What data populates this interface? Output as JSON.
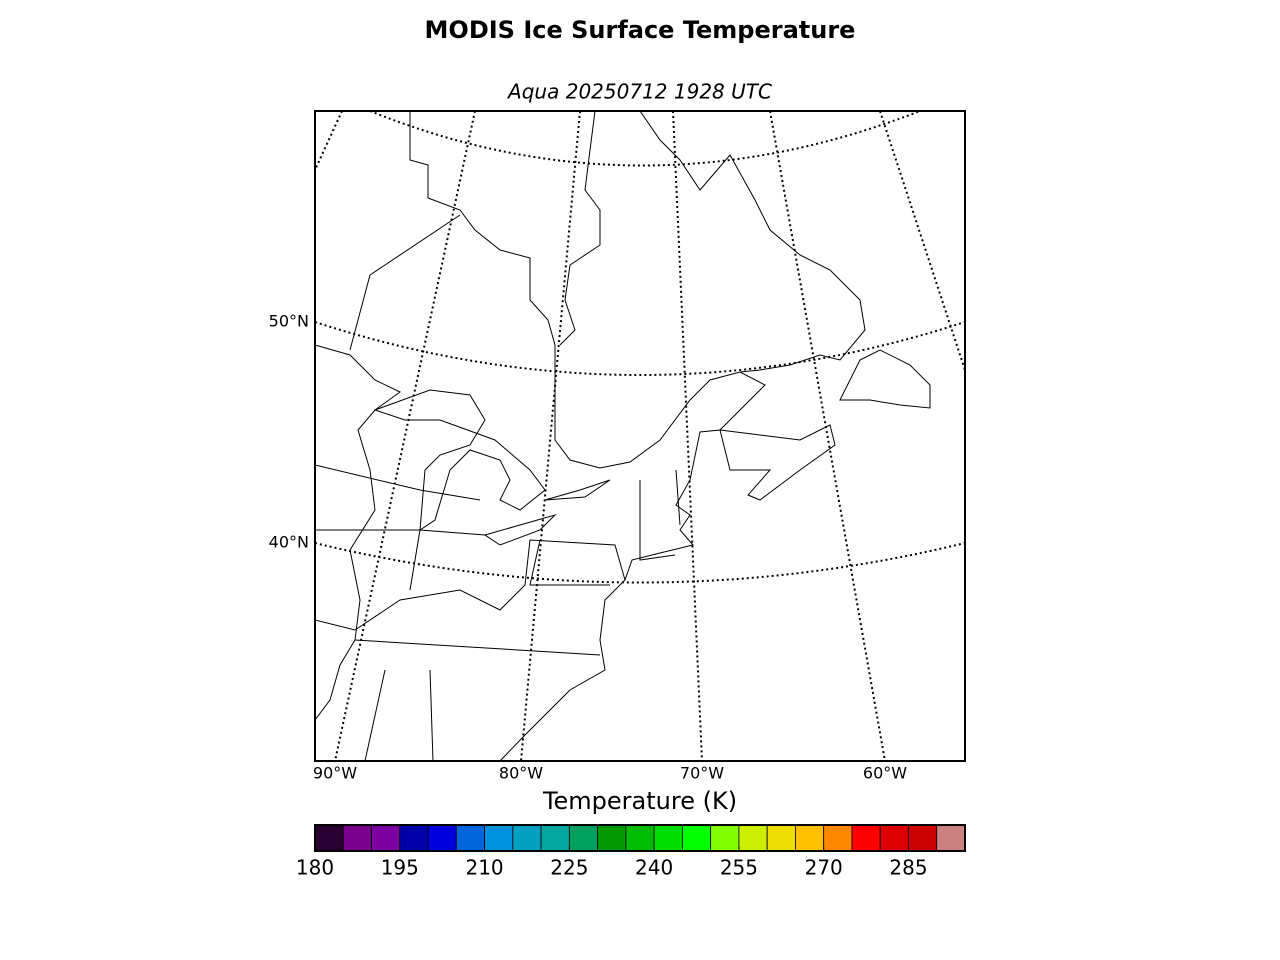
{
  "title": "MODIS Ice Surface Temperature",
  "subtitle": "Aqua 20250712 1928 UTC",
  "map": {
    "lat_labels": [
      "50°N",
      "40°N"
    ],
    "lon_labels": [
      "90°W",
      "80°W",
      "70°W",
      "60°W"
    ]
  },
  "chart_data": {
    "type": "colorbar",
    "title": "Temperature (K)",
    "bins": [
      180,
      185,
      190,
      195,
      200,
      205,
      210,
      215,
      220,
      225,
      230,
      235,
      240,
      245,
      250,
      255,
      260,
      265,
      270,
      275,
      280,
      285,
      290,
      295
    ],
    "colors": [
      "#2a0033",
      "#78008c",
      "#7a00a0",
      "#0000a8",
      "#0000dd",
      "#0064dd",
      "#0090dd",
      "#00a0c0",
      "#00a8a0",
      "#00a060",
      "#009900",
      "#00bb00",
      "#00dd00",
      "#00ff00",
      "#80ff00",
      "#ccee00",
      "#eedd00",
      "#ffc000",
      "#ff8800",
      "#ff0000",
      "#dd0000",
      "#cc0000",
      "#cc8080"
    ],
    "xlim": [
      180,
      295
    ],
    "xticks": [
      180,
      195,
      210,
      225,
      240,
      255,
      270,
      285
    ]
  }
}
